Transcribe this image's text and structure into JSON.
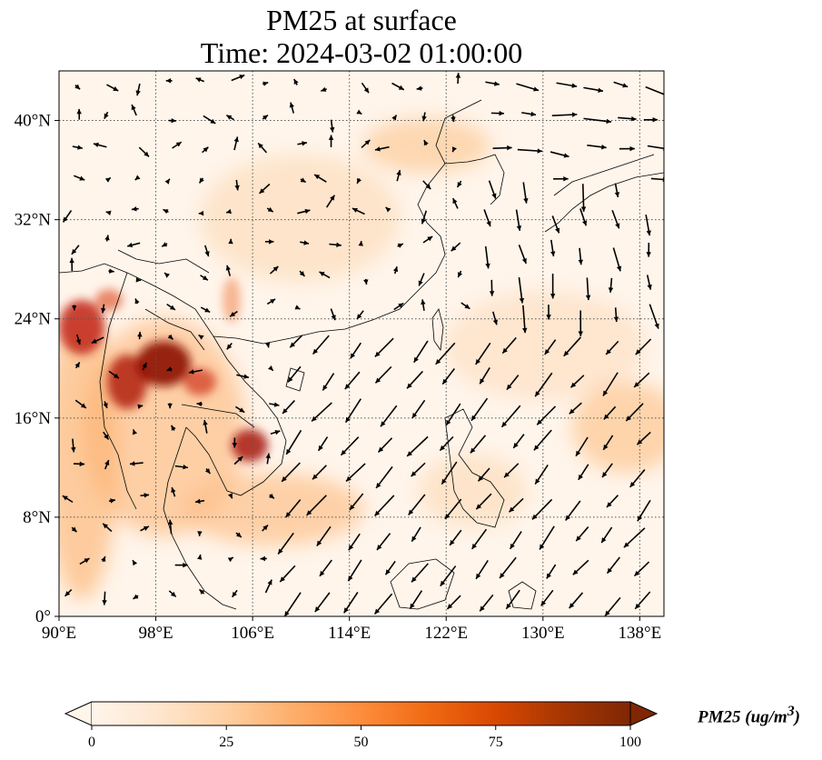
{
  "header": {
    "title": "PM25 at surface",
    "time": "Time: 2024-03-02 01:00:00"
  },
  "map": {
    "lon_range": [
      90,
      140
    ],
    "lat_range": [
      0,
      44
    ],
    "x_ticks": [
      "90°E",
      "98°E",
      "106°E",
      "114°E",
      "122°E",
      "130°E",
      "138°E"
    ],
    "x_tick_values": [
      90,
      98,
      106,
      114,
      122,
      130,
      138
    ],
    "y_ticks": [
      "0°",
      "8°N",
      "16°N",
      "24°N",
      "32°N",
      "40°N"
    ],
    "y_tick_values": [
      0,
      8,
      16,
      24,
      32,
      40
    ],
    "gridlines": true,
    "background_color": "#fff5eb",
    "coastline_color": "#000000"
  },
  "colorbar": {
    "label": "PM25 (ug/m",
    "label_sup": "3",
    "label_close": ")",
    "ticks": [
      "0",
      "25",
      "50",
      "75",
      "100"
    ],
    "tick_values": [
      0,
      25,
      50,
      75,
      100
    ],
    "range": [
      0,
      100
    ],
    "colors": [
      "#fff5eb",
      "#fee6ce",
      "#fdd0a2",
      "#fdae6b",
      "#fd8d3c",
      "#f16913",
      "#d94801",
      "#a63603",
      "#7f2704"
    ],
    "extend": "both"
  },
  "wind": {
    "arrow_color": "#000000"
  }
}
